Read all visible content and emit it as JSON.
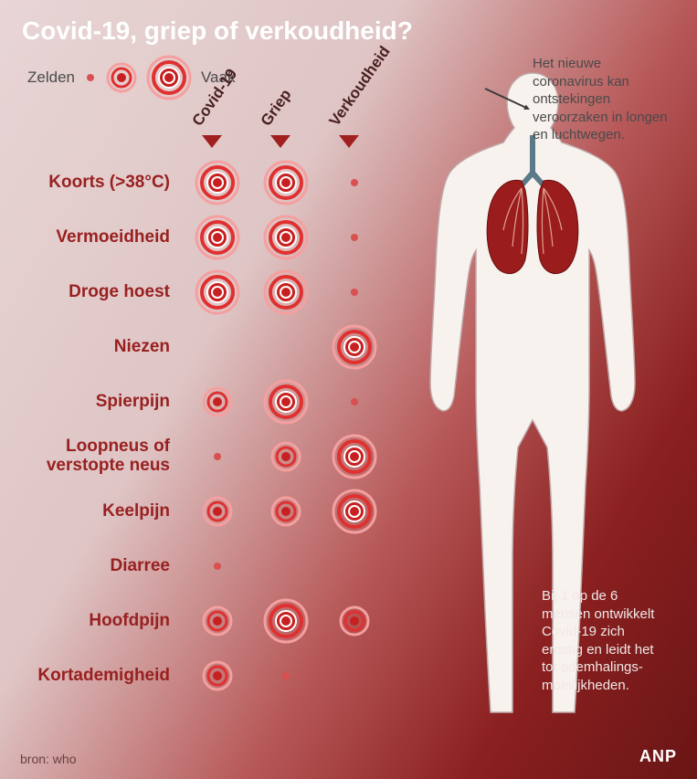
{
  "title": "Covid-19, griep of verkoudheid?",
  "legend": {
    "rare_label": "Zelden",
    "often_label": "Vaak"
  },
  "columns": [
    {
      "label": "Covid-19",
      "tri_color": "#a02020"
    },
    {
      "label": "Griep",
      "tri_color": "#a02020"
    },
    {
      "label": "Verkoudheid",
      "tri_color": "#a02020"
    }
  ],
  "indicator_colors": {
    "ring": "#e03030",
    "ring_light": "#f4a0a0",
    "core": "#c82020",
    "dot": "#d85050"
  },
  "label_color": "#992020",
  "symptoms": [
    {
      "label": "Koorts (>38°C)",
      "values": [
        3,
        3,
        1
      ]
    },
    {
      "label": "Vermoeidheid",
      "values": [
        3,
        3,
        1
      ]
    },
    {
      "label": "Droge hoest",
      "values": [
        3,
        3,
        1
      ]
    },
    {
      "label": "Niezen",
      "values": [
        0,
        0,
        3
      ]
    },
    {
      "label": "Spierpijn",
      "values": [
        2,
        3,
        1
      ]
    },
    {
      "label": "Loopneus of verstopte neus",
      "values": [
        1,
        2,
        3
      ]
    },
    {
      "label": "Keelpijn",
      "values": [
        2,
        2,
        3
      ]
    },
    {
      "label": "Diarree",
      "values": [
        1,
        0,
        0
      ]
    },
    {
      "label": "Hoofdpijn",
      "values": [
        2,
        3,
        2
      ]
    },
    {
      "label": "Kortademigheid",
      "values": [
        2,
        1,
        0
      ]
    }
  ],
  "callout_top": "Het nieuwe coronavirus kan ontstekingen veroorzaken in longen en luchtwegen.",
  "callout_bottom": "Bij 1 op de 6 mensen ontwikkelt Covid-19 zich ernstig en leidt het tot ademhalings-moeilijkheden.",
  "source": "bron: who",
  "logo": "ANP",
  "body_colors": {
    "silhouette_fill": "#f7f2ed",
    "silhouette_stroke": "#c0a8a8",
    "lung_fill": "#9b1c1c",
    "lung_dark": "#6a0f0f",
    "trachea": "#5a7a8a",
    "bronchi": "#e8b0a0"
  }
}
